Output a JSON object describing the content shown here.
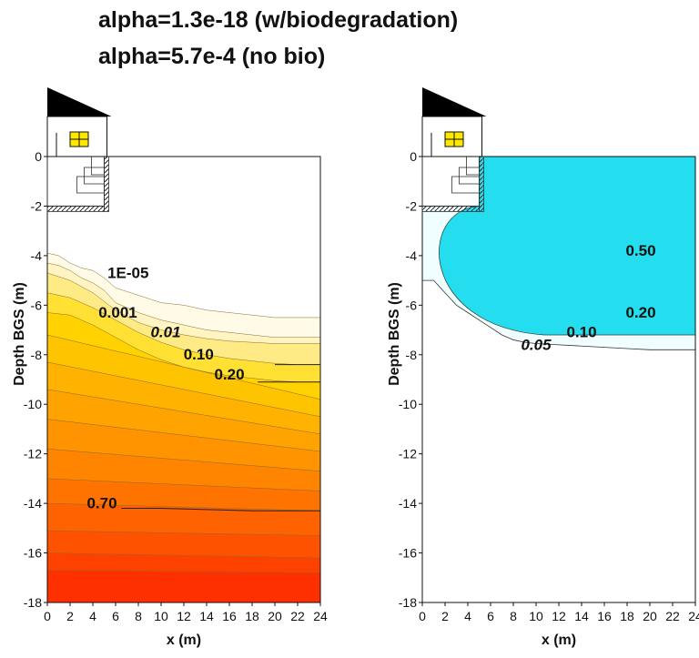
{
  "title_line1": "alpha=1.3e-18 (w/biodegradation)",
  "title_line2": "alpha=5.7e-4 (no bio)",
  "colors": {
    "left_ramp": [
      "#fffbe6",
      "#fff4c2",
      "#ffeb85",
      "#ffe033",
      "#ffd200",
      "#ffc400",
      "#ffb300",
      "#ffa300",
      "#ff9400",
      "#ff8400",
      "#ff7300",
      "#ff6200",
      "#ff5200",
      "#ff4100",
      "#ff3000",
      "#ff1e00"
    ],
    "right_ramp": [
      "#f0feff",
      "#e0fcfe",
      "#cefafd",
      "#bbf7fb",
      "#a6f3fa",
      "#90eff8",
      "#78ebf6",
      "#5ee6f3",
      "#43e1f1",
      "#24ddef"
    ],
    "house_roof": "#000000",
    "house_window": "#ffe800"
  },
  "chart_data": [
    {
      "type": "heatmap",
      "title": "alpha=1.3e-18 (w/biodegradation)",
      "xlabel": "x (m)",
      "ylabel": "Depth BGS (m)",
      "xlim": [
        0,
        24
      ],
      "ylim": [
        -18,
        0
      ],
      "x_ticks": [
        "0",
        "2",
        "4",
        "6",
        "8",
        "10",
        "12",
        "14",
        "16",
        "18",
        "20",
        "22",
        "24"
      ],
      "y_ticks": [
        "0",
        "-2",
        "-4",
        "-6",
        "-8",
        "-10",
        "-12",
        "-14",
        "-16",
        "-18"
      ],
      "contour_labels": [
        {
          "text": "1E-05",
          "x": 7.1,
          "y": -4.9,
          "italic": false,
          "bold": false
        },
        {
          "text": "0.001",
          "x": 6.2,
          "y": -6.5,
          "italic": false,
          "bold": false
        },
        {
          "text": "0.01",
          "x": 10.4,
          "y": -7.3,
          "italic": true,
          "bold": true
        },
        {
          "text": "0.10",
          "x": 13.3,
          "y": -8.2,
          "italic": false,
          "bold": true
        },
        {
          "text": "0.20",
          "x": 16.0,
          "y": -9.0,
          "italic": false,
          "bold": true
        },
        {
          "text": "0.70",
          "x": 4.8,
          "y": -14.2,
          "italic": false,
          "bold": true
        }
      ],
      "boundaries": [
        {
          "x": [
            0,
            1,
            2,
            3,
            4,
            5,
            6,
            8,
            10,
            12,
            14,
            16,
            18,
            20,
            22,
            24
          ],
          "y": [
            -3.9,
            -4.0,
            -4.3,
            -4.5,
            -4.6,
            -4.9,
            -5.3,
            -5.6,
            -5.9,
            -6.0,
            -6.2,
            -6.3,
            -6.4,
            -6.5,
            -6.5,
            -6.5
          ]
        },
        {
          "x": [
            0,
            1,
            2,
            3,
            4,
            5,
            6,
            8,
            10,
            12,
            14,
            16,
            18,
            20,
            22,
            24
          ],
          "y": [
            -4.3,
            -4.4,
            -4.6,
            -4.9,
            -5.1,
            -5.4,
            -5.9,
            -6.3,
            -6.6,
            -6.8,
            -7.0,
            -7.1,
            -7.2,
            -7.3,
            -7.3,
            -7.3
          ]
        },
        {
          "x": [
            0,
            2,
            4,
            6,
            8,
            10,
            12,
            14,
            16,
            18,
            20,
            22,
            24
          ],
          "y": [
            -4.7,
            -5.0,
            -5.5,
            -6.2,
            -6.7,
            -7.0,
            -7.2,
            -7.35,
            -7.45,
            -7.5,
            -7.55,
            -7.55,
            -7.55
          ]
        },
        {
          "x": [
            0,
            2,
            4,
            6,
            8,
            10,
            12,
            14,
            16,
            18,
            20,
            22,
            24
          ],
          "y": [
            -5.5,
            -5.7,
            -6.1,
            -6.6,
            -7.1,
            -7.5,
            -7.8,
            -8.0,
            -8.15,
            -8.25,
            -8.35,
            -8.4,
            -8.4
          ]
        },
        {
          "x": [
            0,
            2,
            4,
            6,
            8,
            10,
            12,
            14,
            16,
            18,
            20,
            22,
            24
          ],
          "y": [
            -6.3,
            -6.4,
            -6.8,
            -7.3,
            -7.8,
            -8.2,
            -8.5,
            -8.7,
            -8.85,
            -8.95,
            -9.05,
            -9.1,
            -9.1
          ]
        },
        {
          "x": [
            0,
            24
          ],
          "y": [
            -7.2,
            -9.8
          ]
        },
        {
          "x": [
            0,
            24
          ],
          "y": [
            -8.3,
            -10.5
          ]
        },
        {
          "x": [
            0,
            24
          ],
          "y": [
            -9.4,
            -11.2
          ]
        },
        {
          "x": [
            0,
            24
          ],
          "y": [
            -10.6,
            -11.9
          ]
        },
        {
          "x": [
            0,
            24
          ],
          "y": [
            -11.8,
            -12.7
          ]
        },
        {
          "x": [
            0,
            24
          ],
          "y": [
            -13.0,
            -13.5
          ]
        },
        {
          "x": [
            0,
            24
          ],
          "y": [
            -14.0,
            -14.3
          ]
        },
        {
          "x": [
            0,
            24
          ],
          "y": [
            -15.1,
            -15.3
          ]
        },
        {
          "x": [
            0,
            24
          ],
          "y": [
            -16.0,
            -16.2
          ]
        },
        {
          "x": [
            0,
            24
          ],
          "y": [
            -16.7,
            -16.8
          ]
        }
      ],
      "contour_lines": [
        {
          "x": [
            20,
            24
          ],
          "y": [
            -8.4,
            -8.4
          ]
        },
        {
          "x": [
            18.5,
            24
          ],
          "y": [
            -9.1,
            -9.1
          ]
        },
        {
          "x": [
            6.5,
            10,
            14,
            18,
            22,
            24
          ],
          "y": [
            -14.2,
            -14.2,
            -14.25,
            -14.3,
            -14.3,
            -14.3
          ]
        }
      ]
    },
    {
      "type": "heatmap",
      "title": "alpha=5.7e-4 (no bio)",
      "xlabel": "x (m)",
      "ylabel": "Depth BGS (m)",
      "xlim": [
        0,
        24
      ],
      "ylim": [
        -18,
        0
      ],
      "x_ticks": [
        "0",
        "2",
        "4",
        "6",
        "8",
        "10",
        "12",
        "14",
        "16",
        "18",
        "20",
        "22",
        "24"
      ],
      "y_ticks": [
        "0",
        "-2",
        "-4",
        "-6",
        "-8",
        "-10",
        "-12",
        "-14",
        "-16",
        "-18"
      ],
      "contour_labels": [
        {
          "text": "0.50",
          "x": 19.2,
          "y": -4.0,
          "italic": false,
          "bold": true
        },
        {
          "text": "0.20",
          "x": 19.2,
          "y": -6.5,
          "italic": false,
          "bold": true
        },
        {
          "text": "0.10",
          "x": 14.0,
          "y": -7.3,
          "italic": false,
          "bold": true
        },
        {
          "text": "0.05",
          "x": 10.0,
          "y": -7.8,
          "italic": true,
          "bold": true
        }
      ],
      "outer_front": {
        "x": [
          0,
          1,
          2,
          3,
          4,
          5,
          6,
          7,
          8,
          9,
          10,
          12,
          14,
          16,
          18,
          20,
          22,
          24
        ],
        "y": [
          -5.0,
          -5.0,
          -5.5,
          -6.0,
          -6.3,
          -6.6,
          -6.9,
          -7.2,
          -7.4,
          -7.5,
          -7.55,
          -7.6,
          -7.65,
          -7.7,
          -7.75,
          -7.8,
          -7.8,
          -7.8
        ]
      },
      "levels": [
        {
          "depth": 0.8,
          "bulge": 0.3
        },
        {
          "depth": 1.5,
          "bulge": 0.6
        },
        {
          "depth": 2.3,
          "bulge": 1.0
        },
        {
          "depth": 3.0,
          "bulge": 1.6
        },
        {
          "depth": 3.7,
          "bulge": 2.2
        },
        {
          "depth": 4.4,
          "bulge": 2.9
        },
        {
          "depth": 5.2,
          "bulge": 3.7
        },
        {
          "depth": 5.9,
          "bulge": 4.5
        },
        {
          "depth": 6.6,
          "bulge": 5.3
        },
        {
          "depth": 7.2,
          "bulge": 6.0
        }
      ]
    }
  ]
}
